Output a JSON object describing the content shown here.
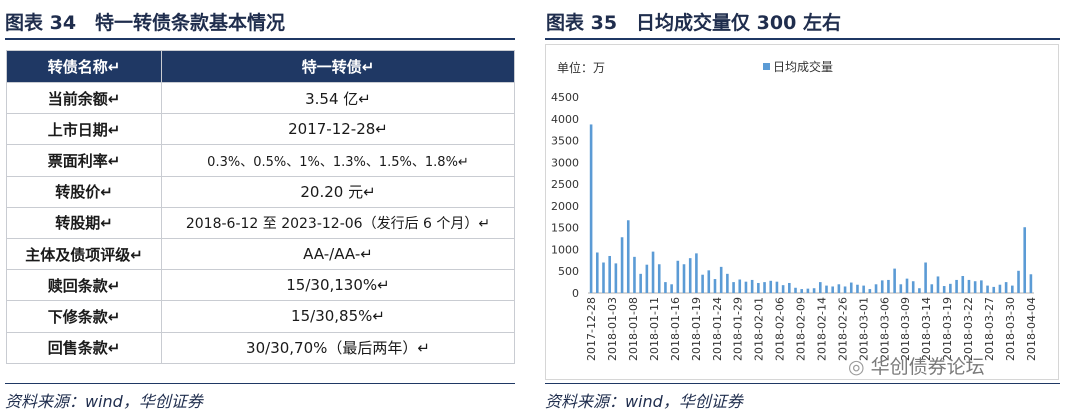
{
  "left_panel": {
    "title": "图表 34　特一转债条款基本情况",
    "header": [
      "转债名称↵",
      "特一转债↵"
    ],
    "rows": [
      [
        "当前余额↵",
        "3.54 亿↵"
      ],
      [
        "上市日期↵",
        "2017-12-28↵"
      ],
      [
        "票面利率↵",
        "0.3%、0.5%、1%、1.3%、1.5%、1.8%↵"
      ],
      [
        "转股价↵",
        "20.20 元↵"
      ],
      [
        "转股期↵",
        "2018-6-12 至 2023-12-06（发行后 6 个月）↵"
      ],
      [
        "主体及债项评级↵",
        "AA-/AA-↵"
      ],
      [
        "赎回条款↵",
        "15/30,130%↵"
      ],
      [
        "下修条款↵",
        "15/30,85%↵"
      ],
      [
        "回售条款↵",
        "30/30,70%（最后两年）↵"
      ]
    ],
    "source": "资料来源：wind，华创证券"
  },
  "right_panel": {
    "title": "图表 35　日均成交量仅 300 左右",
    "source": "资料来源：wind，华创证券",
    "watermark": "华创债券论坛"
  },
  "chart_data": {
    "type": "bar",
    "unit_label": "单位：万",
    "legend": "日均成交量",
    "legend_position": "top",
    "series_color": "#5b9bd5",
    "ylim": [
      0,
      4500
    ],
    "yticks": [
      "0",
      "500",
      "1000",
      "1500",
      "2000",
      "2500",
      "3000",
      "3500",
      "4000",
      "4500"
    ],
    "grid": false,
    "xtick_labels": [
      "2017-12-28",
      "2018-01-03",
      "2018-01-08",
      "2018-01-11",
      "2018-01-16",
      "2018-01-19",
      "2018-01-24",
      "2018-01-29",
      "2018-02-01",
      "2018-02-06",
      "2018-02-09",
      "2018-02-14",
      "2018-02-26",
      "2018-03-01",
      "2018-03-06",
      "2018-03-09",
      "2018-03-14",
      "2018-03-19",
      "2018-03-22",
      "2018-03-27",
      "2018-03-30",
      "2018-04-04"
    ],
    "values": [
      3870,
      930,
      700,
      850,
      680,
      1280,
      1670,
      830,
      440,
      650,
      950,
      660,
      250,
      200,
      740,
      660,
      800,
      910,
      420,
      520,
      320,
      600,
      440,
      250,
      310,
      260,
      300,
      230,
      250,
      280,
      260,
      180,
      230,
      120,
      90,
      100,
      110,
      250,
      170,
      150,
      200,
      150,
      240,
      190,
      170,
      90,
      200,
      290,
      300,
      560,
      200,
      330,
      270,
      110,
      700,
      200,
      380,
      160,
      210,
      300,
      390,
      300,
      270,
      290,
      170,
      140,
      190,
      250,
      170,
      510,
      1510,
      430
    ]
  }
}
